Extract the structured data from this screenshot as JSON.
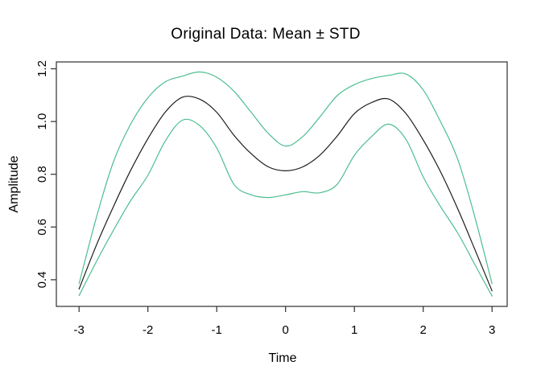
{
  "figure": {
    "background": "#ffffff",
    "frame_color": "#2e2e2e",
    "tick_color": "#2e2e2e"
  },
  "chart_data": {
    "type": "line",
    "title": "Original Data: Mean ± STD",
    "xlabel": "Time",
    "ylabel": "Amplitude",
    "grid": false,
    "legend_position": "none",
    "xlim": [
      -3.33,
      3.22
    ],
    "ylim": [
      0.299,
      1.226
    ],
    "x_ticks": [
      -3,
      -2,
      -1,
      0,
      1,
      2,
      3
    ],
    "x_tick_labels": [
      "-3",
      "-2",
      "-1",
      "0",
      "1",
      "2",
      "3"
    ],
    "y_ticks": [
      0.4,
      0.6,
      0.8,
      1.0,
      1.2
    ],
    "y_tick_labels": [
      "0.4",
      "0.6",
      "0.8",
      "1.0",
      "1.2"
    ],
    "x": [
      -3.0,
      -2.75,
      -2.5,
      -2.25,
      -2.0,
      -1.75,
      -1.5,
      -1.25,
      -1.0,
      -0.75,
      -0.5,
      -0.25,
      0.0,
      0.25,
      0.5,
      0.75,
      1.0,
      1.25,
      1.5,
      1.75,
      2.0,
      2.25,
      2.5,
      2.75,
      3.0
    ],
    "series": [
      {
        "name": "mean-plus-std",
        "label": "Mean + STD",
        "color": "#4dbe8f",
        "width": 1.2,
        "values": [
          0.385,
          0.635,
          0.848,
          0.99,
          1.09,
          1.15,
          1.172,
          1.188,
          1.168,
          1.115,
          1.035,
          0.955,
          0.907,
          0.943,
          1.018,
          1.098,
          1.14,
          1.163,
          1.175,
          1.18,
          1.12,
          1.0,
          0.858,
          0.638,
          0.385
        ]
      },
      {
        "name": "mean",
        "label": "Mean",
        "color": "#1c1c1c",
        "width": 1.2,
        "values": [
          0.365,
          0.53,
          0.678,
          0.815,
          0.935,
          1.035,
          1.092,
          1.085,
          1.035,
          0.948,
          0.878,
          0.828,
          0.813,
          0.828,
          0.873,
          0.945,
          1.03,
          1.072,
          1.085,
          1.03,
          0.93,
          0.81,
          0.67,
          0.515,
          0.358
        ]
      },
      {
        "name": "mean-minus-std",
        "label": "Mean - STD",
        "color": "#4dbe8f",
        "width": 1.2,
        "values": [
          0.34,
          0.468,
          0.588,
          0.7,
          0.796,
          0.925,
          1.005,
          0.985,
          0.9,
          0.762,
          0.722,
          0.712,
          0.722,
          0.734,
          0.73,
          0.762,
          0.872,
          0.943,
          0.99,
          0.932,
          0.79,
          0.678,
          0.578,
          0.458,
          0.338
        ]
      }
    ]
  }
}
